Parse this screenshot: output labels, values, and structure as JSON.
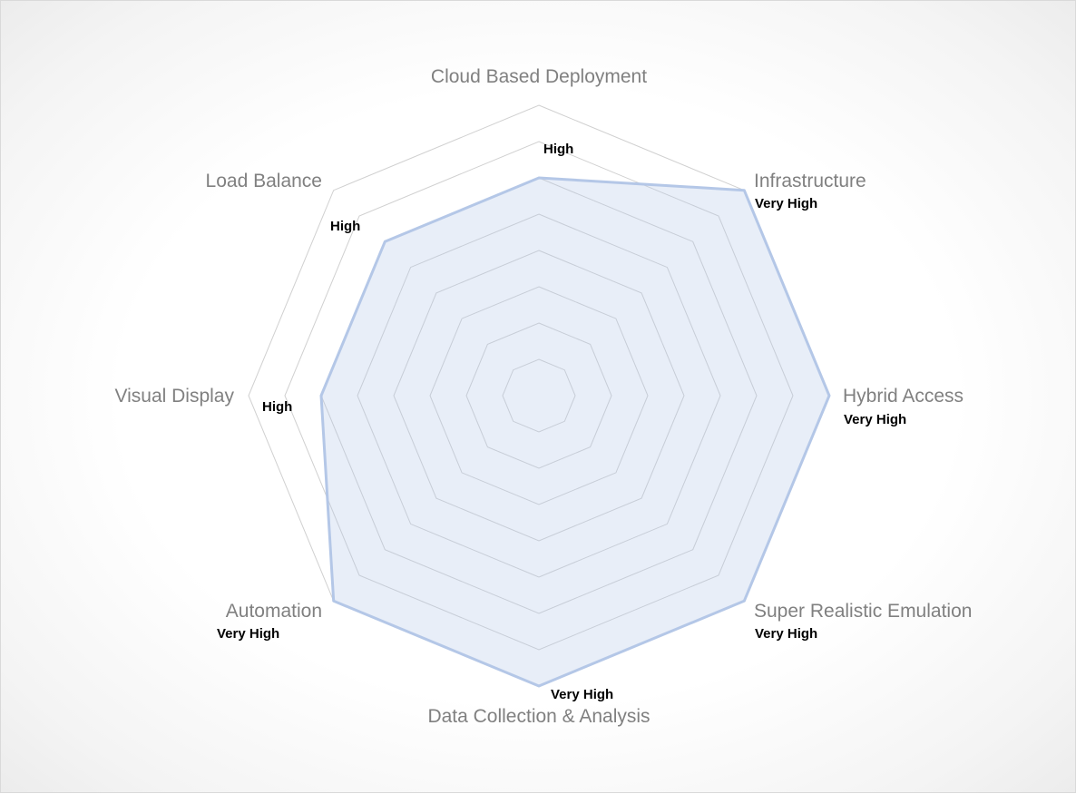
{
  "chart_data": {
    "type": "radar",
    "title": "",
    "levels": 8,
    "scale_max": 8,
    "categories": [
      "Cloud Based Deployment",
      "Infrastructure",
      "Hybrid Access",
      "Super Realistic Emulation",
      "Data Collection & Analysis",
      "Automation",
      "Visual Display",
      "Load Balance"
    ],
    "values": [
      6,
      8,
      8,
      8,
      8,
      8,
      6,
      6
    ],
    "value_labels": [
      "High",
      "Very High",
      "Very High",
      "Very High",
      "Very High",
      "Very High",
      "High",
      "High"
    ],
    "grid": true,
    "legend": "none",
    "colors": {
      "series_line": "#b4c7e7",
      "series_fill": "#b4c7e7",
      "grid": "#d0d0d0",
      "axis_label": "#808080",
      "value_label": "#000000"
    }
  }
}
